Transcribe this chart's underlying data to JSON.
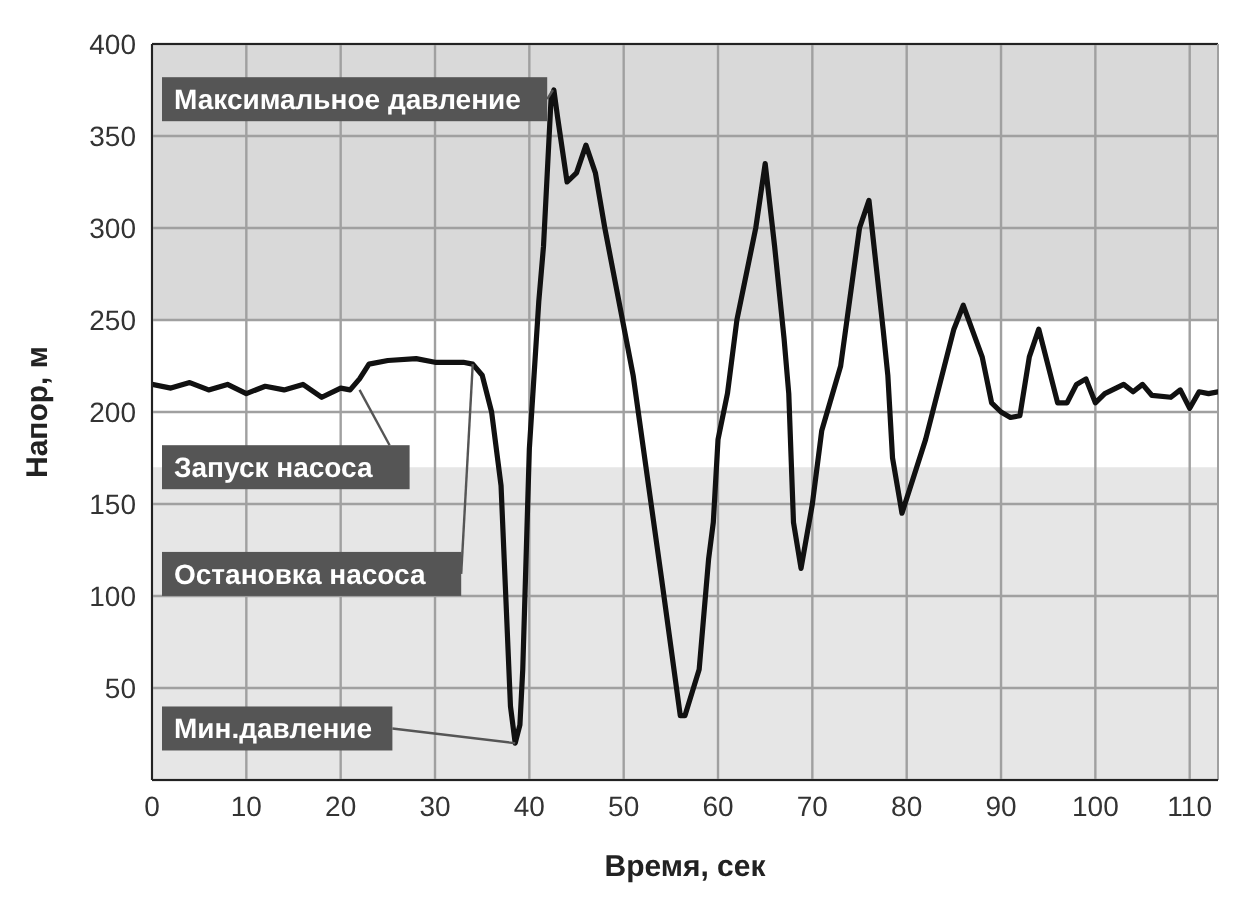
{
  "chart_data": {
    "type": "line",
    "xlabel": "Время, сек",
    "ylabel": "Напор, м",
    "xlim": [
      0,
      113
    ],
    "xticks": [
      0,
      10,
      20,
      30,
      40,
      50,
      60,
      70,
      80,
      90,
      100,
      110
    ],
    "ylim": [
      0,
      400
    ],
    "yticks": [
      {
        "value": 0,
        "label": null
      },
      50,
      100,
      150,
      200,
      250,
      300,
      350,
      400
    ],
    "grid": true,
    "marker": "none",
    "line_style": "solid",
    "bands": [
      {
        "axis": "y",
        "from": 250,
        "to": 400,
        "color": "#d9d9d9"
      },
      {
        "axis": "y",
        "from": 0,
        "to": 170,
        "color": "#e6e6e6"
      }
    ],
    "annotations": [
      {
        "text": "Максимальное давление",
        "x": 42.5,
        "y": 375
      },
      {
        "text": "Запуск насоса",
        "x": 22,
        "y": 212
      },
      {
        "text": "Остановка насоса",
        "x": 34,
        "y": 226
      },
      {
        "text": "Мин.давление",
        "x": 38.5,
        "y": 20
      }
    ],
    "series": [
      {
        "color": "#111111",
        "x": [
          0,
          2,
          4,
          6,
          8,
          10,
          12,
          14,
          16,
          18,
          20,
          21,
          22,
          23,
          25,
          28,
          30,
          33,
          34,
          35,
          36,
          37,
          37.5,
          38,
          38.5,
          39,
          39.3,
          40,
          41,
          41.5,
          42.3,
          42.6,
          43,
          44,
          45,
          46,
          47,
          48,
          51,
          54,
          56,
          56.5,
          58,
          59,
          59.5,
          60,
          61,
          62,
          64,
          65,
          66,
          67,
          67.5,
          68,
          68.8,
          70,
          71,
          73,
          75,
          76,
          77.5,
          78,
          78.5,
          79.5,
          82,
          85,
          86,
          88,
          89,
          90,
          91,
          92,
          93,
          94,
          96,
          97,
          98,
          99,
          100,
          101,
          103,
          104,
          105,
          106,
          108,
          109,
          110,
          111,
          112,
          113
        ],
        "values": [
          215,
          213,
          216,
          212,
          215,
          210,
          214,
          212,
          215,
          208,
          213,
          212,
          218,
          226,
          228,
          229,
          227,
          227,
          226,
          220,
          200,
          160,
          100,
          40,
          20,
          30,
          60,
          180,
          260,
          290,
          370,
          375,
          360,
          325,
          330,
          345,
          330,
          300,
          220,
          110,
          35,
          35,
          60,
          120,
          140,
          185,
          210,
          250,
          300,
          335,
          290,
          240,
          210,
          140,
          115,
          150,
          190,
          225,
          300,
          315,
          245,
          220,
          175,
          145,
          185,
          245,
          258,
          230,
          205,
          200,
          197,
          198,
          230,
          245,
          205,
          205,
          215,
          218,
          205,
          210,
          215,
          211,
          215,
          209,
          208,
          212,
          202,
          211,
          210,
          211
        ]
      }
    ]
  }
}
